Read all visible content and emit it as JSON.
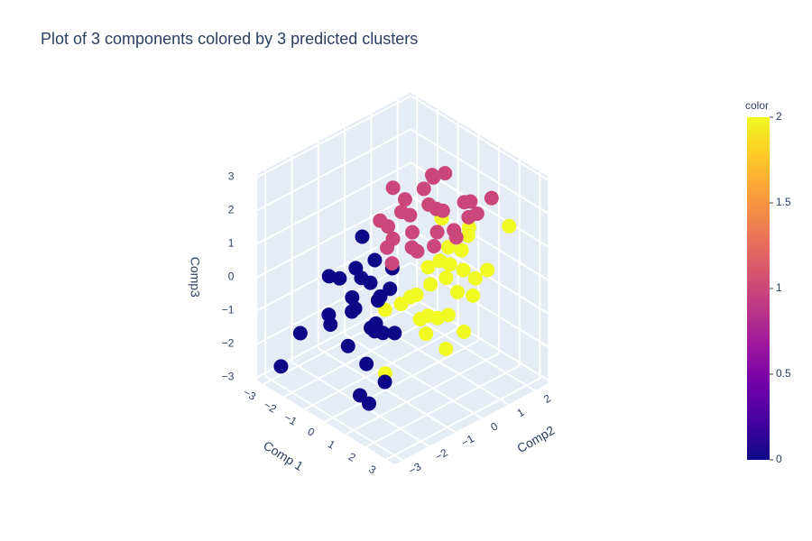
{
  "chart_data": {
    "type": "scatter3d",
    "title": "Plot of 3 components colored by 3 predicted clusters",
    "xaxis_title": "Comp 1",
    "yaxis_title": "Comp2",
    "zaxis_title": "Comp3",
    "xlim": [
      -3.3,
      3.4
    ],
    "ylim": [
      -3.3,
      2.5
    ],
    "zlim": [
      -3.1,
      3.1
    ],
    "xticks": [
      {
        "value": -3,
        "label": "−3"
      },
      {
        "value": -2,
        "label": "−2"
      },
      {
        "value": -1,
        "label": "−1"
      },
      0,
      1,
      2,
      3
    ],
    "yticks": [
      {
        "value": -3,
        "label": "−3"
      },
      {
        "value": -2,
        "label": "−2"
      },
      {
        "value": -1,
        "label": "−1"
      },
      0,
      1,
      2
    ],
    "zticks": [
      {
        "value": -3,
        "label": "−3"
      },
      {
        "value": -2,
        "label": "−2"
      },
      {
        "value": -1,
        "label": "−1"
      },
      0,
      1,
      2,
      3
    ],
    "x": [
      -2.8,
      -1.5,
      -1,
      -0.5,
      0,
      0.3,
      -0.8,
      -1.2,
      0.5,
      -0.3,
      -2,
      -1.8,
      -0.6,
      0.2,
      -1.4,
      0.8,
      -0.9,
      -0.2,
      1.2,
      0.6,
      -1.1,
      -0.4,
      1.5,
      0.8,
      1.5,
      -2.5,
      -1.6,
      0.1,
      0,
      -0.5,
      0.5,
      -1,
      1,
      0.2,
      -0.3,
      0.8,
      -0.8,
      1.2,
      0.4,
      -0.2,
      0.6,
      -0.6,
      1.5,
      0,
      -1.3,
      0.9,
      0.3,
      -0.4,
      1.1,
      -2,
      -1.5,
      -1.2,
      -0.8,
      0.7,
      -0.1,
      0.5,
      0.5,
      1,
      0.2,
      0.8,
      1.5,
      0.3,
      1.2,
      0.6,
      0,
      1.8,
      0.9,
      0.4,
      1.1,
      0.7,
      1.4,
      0.1,
      2,
      1.6,
      0.5,
      1.3,
      0.8,
      -0.5,
      -0.2,
      1.5,
      0.6,
      1.0,
      -0.3,
      1.9
    ],
    "y": [
      -2.8,
      -2,
      -1.5,
      -1.2,
      -1.3,
      -1.8,
      -0.8,
      -1,
      -1.5,
      -2.2,
      -1.6,
      -0.5,
      -1.7,
      -1,
      -1.2,
      -2,
      -2.4,
      -0.6,
      -1.6,
      -2.2,
      -1.9,
      -0.9,
      -2.2,
      -2.6,
      -2.8,
      -2.3,
      -0.9,
      -1.5,
      0,
      0.3,
      -0.2,
      0.5,
      0.8,
      1,
      -0.5,
      0.2,
      -0.3,
      1.2,
      0.6,
      -0.8,
      1.5,
      0.9,
      0.5,
      2.2,
      1.8,
      2.3,
      -1,
      -0.1,
      1.6,
      2.3,
      2.4,
      0.2,
      -0.6,
      0.4,
      0.7,
      -0.4,
      0.3,
      0.5,
      0,
      0.8,
      0.2,
      -0.3,
      1,
      1.4,
      0.6,
      0.9,
      -0.4,
      1.8,
      0.1,
      0.5,
      1.3,
      -0.5,
      0.4,
      1.6,
      0.2,
      0.7,
      -0.1,
      1.5,
      2.3,
      2.5,
      0.9,
      -1.8,
      -0.8,
      -0.2
    ],
    "z": [
      -2.7,
      -1,
      -0.5,
      0,
      -0.3,
      -0.8,
      0.4,
      -0.2,
      -1,
      -1.4,
      -0.2,
      0.6,
      -0.6,
      0,
      -1.2,
      -0.4,
      -0.9,
      0.3,
      -0.7,
      -1.6,
      0.2,
      -0.5,
      -1.8,
      -2.3,
      -2.2,
      -1.8,
      -0.1,
      -1.1,
      1.2,
      1.4,
      0.9,
      1.6,
      1.3,
      1.5,
      1.1,
      1,
      1.2,
      1.6,
      1.8,
      1.0,
      1.7,
      1.9,
      1.4,
      1.2,
      1.6,
      1.6,
      0.8,
      1.7,
      1.5,
      1.2,
      1.4,
      2.0,
      1.5,
      1.3,
      1.7,
      1.1,
      -0.3,
      0,
      -0.6,
      0.2,
      -0.8,
      -0.5,
      0.1,
      0.3,
      -0.1,
      -0.4,
      -0.9,
      0.5,
      -1,
      0.4,
      -0.2,
      -0.7,
      -1.2,
      0,
      -1.2,
      -0.4,
      -1.5,
      0.8,
      0.3,
      0.9,
      0.6,
      -1.9,
      -0.9,
      -1.5
    ],
    "color": [
      0,
      0,
      0,
      0,
      0,
      0,
      0,
      0,
      0,
      0,
      0,
      0,
      0,
      0,
      0,
      0,
      0,
      0,
      0,
      0,
      0,
      0,
      0,
      0,
      0,
      0,
      0,
      0,
      1,
      1,
      1,
      1,
      1,
      1,
      1,
      1,
      1,
      1,
      1,
      1,
      1,
      1,
      1,
      1,
      1,
      1,
      1,
      1,
      1,
      1,
      1,
      1,
      1,
      1,
      1,
      1,
      2,
      2,
      2,
      2,
      2,
      2,
      2,
      2,
      2,
      2,
      2,
      2,
      2,
      2,
      2,
      2,
      2,
      2,
      2,
      2,
      2,
      2,
      2,
      2,
      2,
      2,
      2,
      2
    ],
    "colorbar": {
      "title": "color",
      "lim": [
        0,
        2
      ],
      "ticks": [
        0,
        0.5,
        1,
        1.5,
        2
      ],
      "colorscale": [
        "#0d0887",
        "#46039f",
        "#7201a8",
        "#9c179e",
        "#bd3786",
        "#d8576b",
        "#ed7953",
        "#fb9f3a",
        "#fdca26",
        "#f0f921"
      ]
    }
  }
}
